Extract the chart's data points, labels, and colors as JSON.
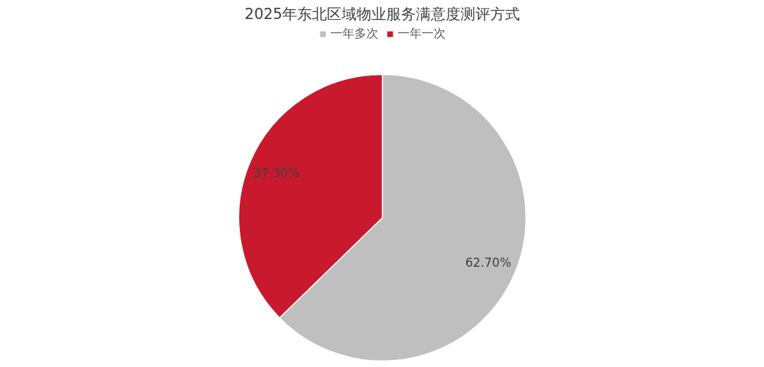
{
  "chart_data": {
    "type": "pie",
    "title": "2025年东北区域物业服务满意度测评方式",
    "categories": [
      "一年多次",
      "一年一次"
    ],
    "values": [
      62.7,
      37.3
    ],
    "colors": [
      "#bfbfbf",
      "#c8192e"
    ],
    "value_labels": [
      "62.70%",
      "37.30%"
    ],
    "legend": "top"
  }
}
